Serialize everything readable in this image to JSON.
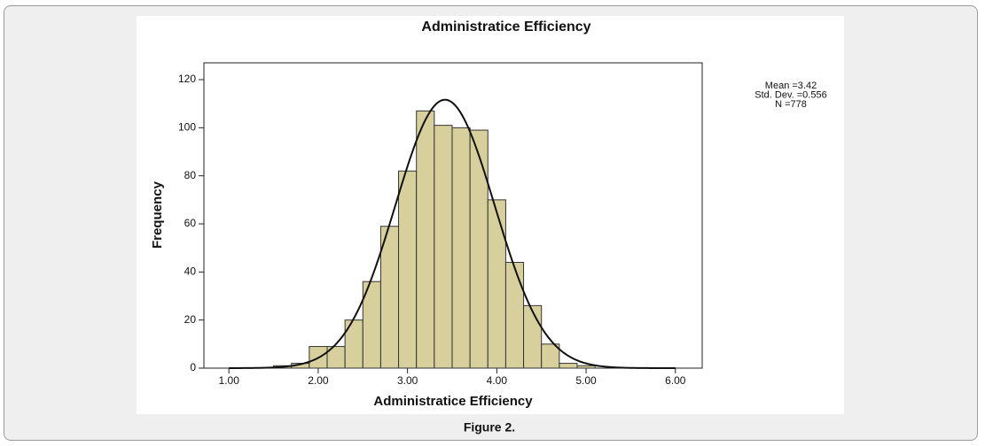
{
  "chart_data": {
    "type": "histogram",
    "title": "Administratice Efficiency",
    "x_label": "Administratice Efficiency",
    "y_label": "Frequency",
    "bins": [
      1.5,
      1.7,
      1.9,
      2.1,
      2.3,
      2.5,
      2.7,
      2.9,
      3.1,
      3.3,
      3.5,
      3.7,
      3.9,
      4.1,
      4.3,
      4.5,
      4.7,
      4.9,
      5.1
    ],
    "values": [
      1,
      2,
      9,
      9,
      20,
      36,
      59,
      82,
      107,
      101,
      100,
      99,
      70,
      44,
      26,
      10,
      2,
      1
    ],
    "color": "#d8d09c",
    "xlim": [
      0.72,
      6.3
    ],
    "xticks": [
      {
        "value": 1,
        "label": "1.00"
      },
      {
        "value": 2,
        "label": "2.00"
      },
      {
        "value": 3,
        "label": "3.00"
      },
      {
        "value": 4,
        "label": "4.00"
      },
      {
        "value": 5,
        "label": "5.00"
      },
      {
        "value": 6,
        "label": "6.00"
      }
    ],
    "ylim": [
      0,
      127
    ],
    "yticks": [
      0,
      20,
      40,
      60,
      80,
      100,
      120
    ],
    "stats": [
      {
        "label": "Mean =3.42",
        "value": 3.42
      },
      {
        "label": "Std. Dev. =0.556",
        "value": 0.556
      },
      {
        "label": "N =778",
        "value": 778
      }
    ],
    "caption": "Figure 2."
  }
}
